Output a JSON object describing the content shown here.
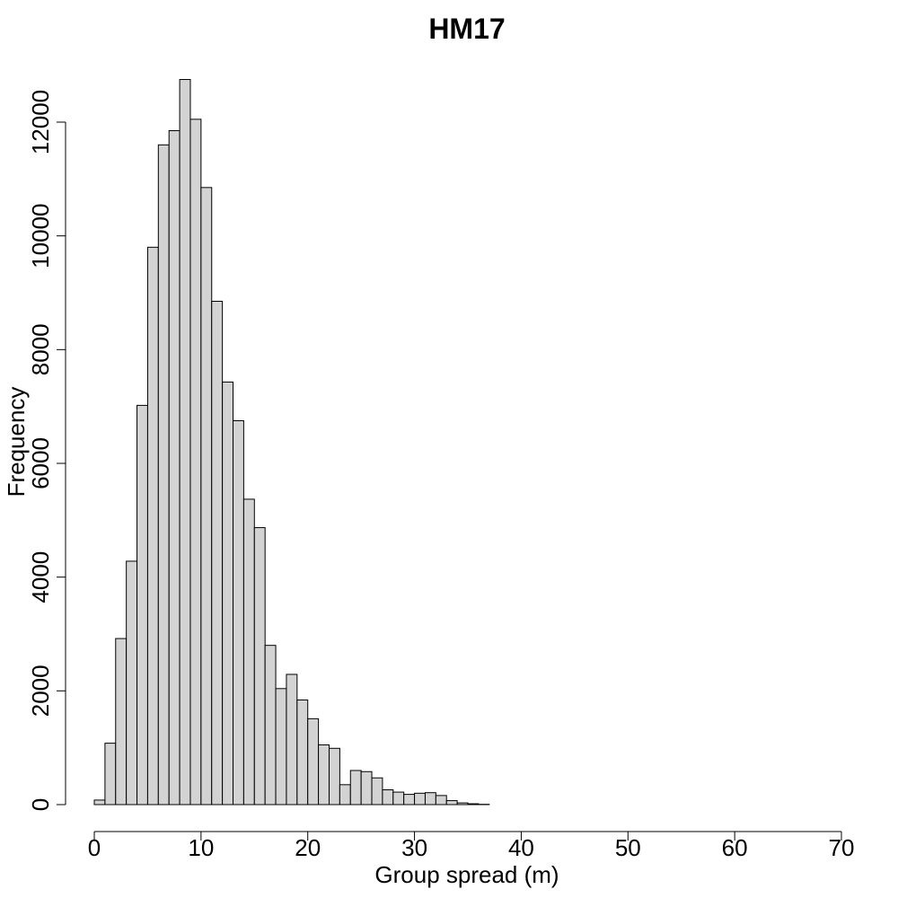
{
  "chart_data": {
    "type": "bar",
    "subtype": "histogram",
    "title": "HM17",
    "xlabel": "Group spread (m)",
    "ylabel": "Frequency",
    "bin_width": 1,
    "bin_start": 0,
    "values": [
      80,
      1080,
      2920,
      4280,
      7020,
      9800,
      11600,
      11850,
      12750,
      12050,
      10850,
      8850,
      7430,
      6750,
      5370,
      4870,
      2800,
      2040,
      2290,
      1840,
      1510,
      1050,
      990,
      350,
      600,
      580,
      470,
      260,
      220,
      180,
      200,
      210,
      160,
      70,
      30,
      15,
      5,
      0,
      0,
      0,
      0,
      0,
      0,
      0,
      0,
      0,
      0,
      0,
      0,
      0,
      0,
      0,
      0
    ],
    "xlim": [
      0,
      70
    ],
    "ylim": [
      0,
      12000
    ],
    "x_ticks": [
      "0",
      "10",
      "20",
      "30",
      "40",
      "50",
      "60",
      "70"
    ],
    "y_ticks": [
      "0",
      "2000",
      "4000",
      "6000",
      "8000",
      "10000",
      "12000"
    ],
    "bar_fill": "#d3d3d3",
    "bar_stroke": "#000000",
    "grid": false
  }
}
